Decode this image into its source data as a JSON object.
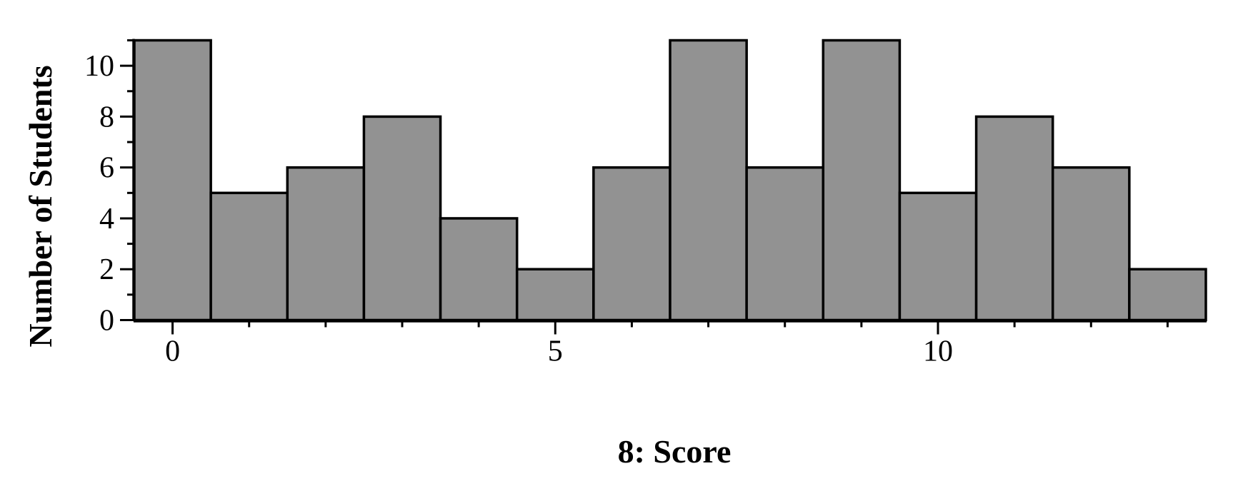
{
  "chart_data": {
    "type": "bar",
    "subtype": "histogram",
    "title": "",
    "xlabel": "8: Score",
    "ylabel": "Number of Students",
    "x": [
      0,
      1,
      2,
      3,
      4,
      5,
      6,
      7,
      8,
      9,
      10,
      11,
      12,
      13
    ],
    "values": [
      11,
      5,
      6,
      8,
      4,
      2,
      6,
      11,
      6,
      11,
      5,
      8,
      6,
      2
    ],
    "bin_width": 1,
    "xlim": [
      -0.5,
      13.5
    ],
    "ylim": [
      0,
      11
    ],
    "xticks": [
      0,
      5,
      10
    ],
    "xtick_labels": [
      "0",
      "5",
      "10"
    ],
    "yticks": [
      0,
      2,
      4,
      6,
      8,
      10
    ],
    "ytick_labels": [
      "0",
      "2",
      "4",
      "6",
      "8",
      "10"
    ],
    "grid": false,
    "bar_color": "#929292",
    "edge_color": "#000000"
  }
}
